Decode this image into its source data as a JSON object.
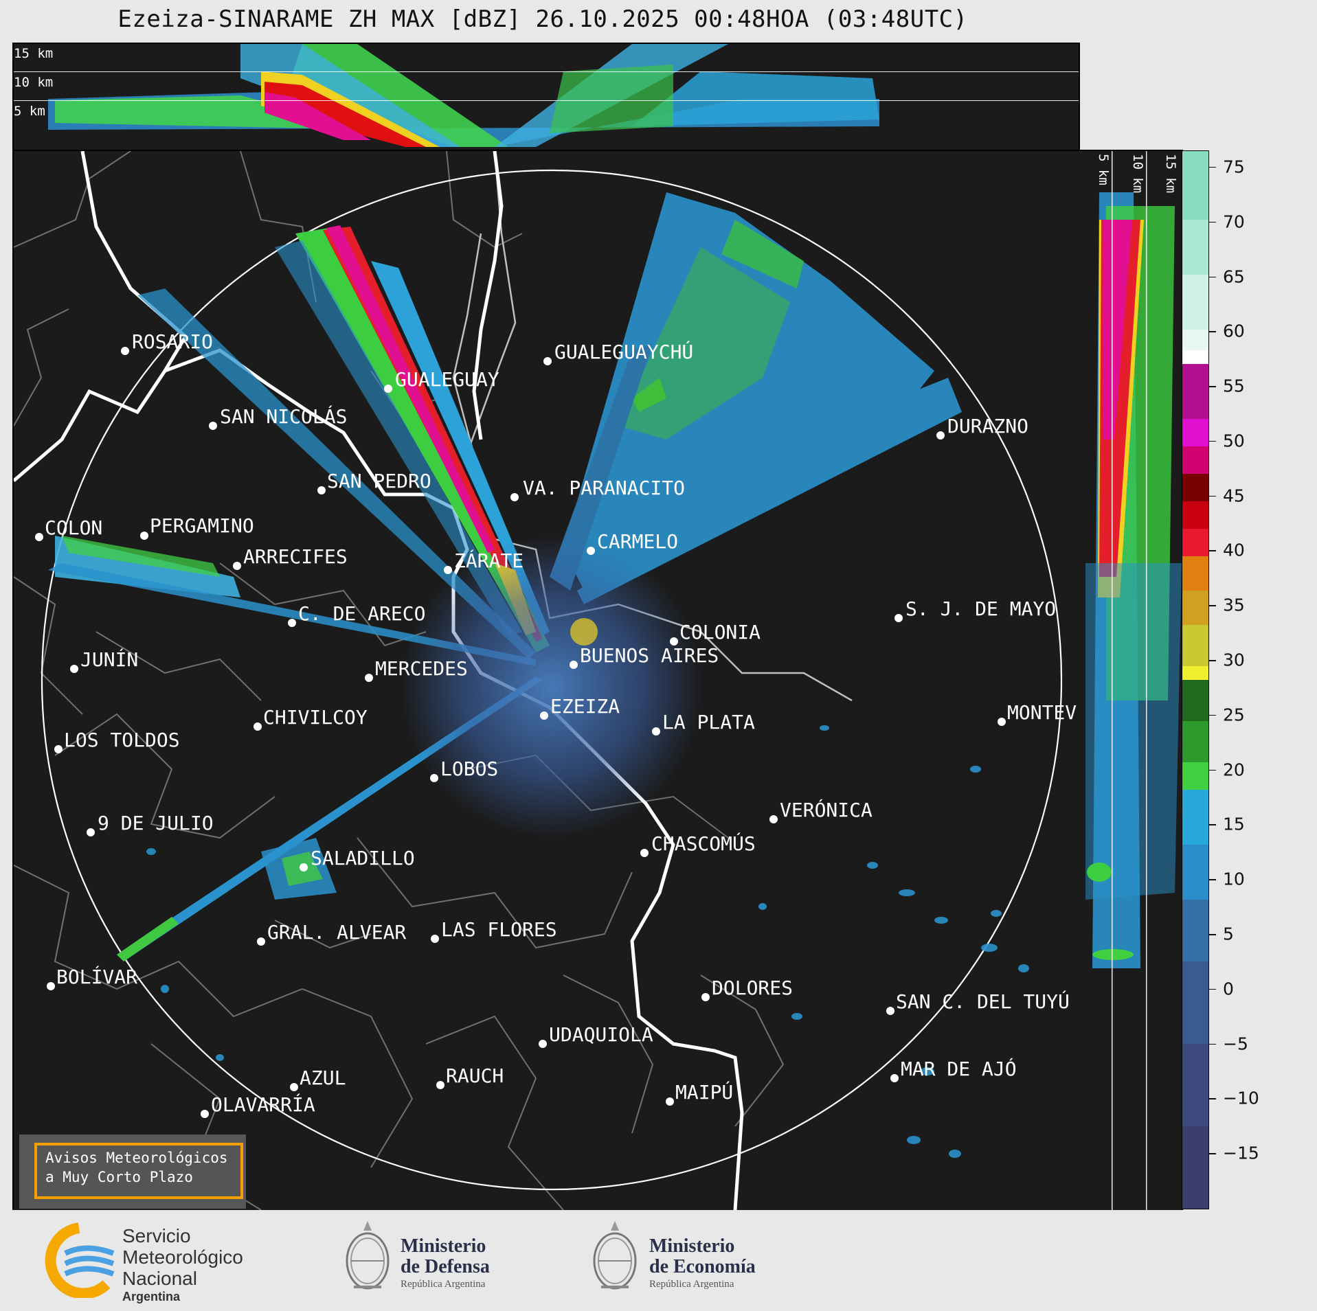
{
  "title": "Ezeiza-SINARAME ZH MAX [dBZ] 26.10.2025 00:48HOA (03:48UTC)",
  "top_panel": {
    "height_labels": [
      "15 km",
      "10 km",
      "5 km"
    ]
  },
  "side_panel": {
    "height_labels": [
      "5 km",
      "10 km",
      "15 km"
    ]
  },
  "colorbar": {
    "ticks": [
      "75",
      "70",
      "65",
      "60",
      "55",
      "50",
      "45",
      "40",
      "35",
      "30",
      "25",
      "20",
      "15",
      "10",
      "5",
      "0",
      "−5",
      "−10",
      "−15"
    ],
    "range": [
      -20,
      76.5
    ]
  },
  "cities": [
    {
      "name": "ROSARIO"
    },
    {
      "name": "GUALEGUAYCHÚ"
    },
    {
      "name": "GUALEGUAY"
    },
    {
      "name": "SAN NICOLÁS"
    },
    {
      "name": "DURAZNO"
    },
    {
      "name": "SAN PEDRO"
    },
    {
      "name": "VA. PARANACITO"
    },
    {
      "name": "COLON"
    },
    {
      "name": "PERGAMINO"
    },
    {
      "name": "CARMELO"
    },
    {
      "name": "ARRECIFES"
    },
    {
      "name": "ZÁRATE"
    },
    {
      "name": "S. J. DE MAYO"
    },
    {
      "name": "C. DE ARECO"
    },
    {
      "name": "COLONIA"
    },
    {
      "name": "JUNÍN"
    },
    {
      "name": "BUENOS AIRES"
    },
    {
      "name": "MERCEDES"
    },
    {
      "name": "MONTEV"
    },
    {
      "name": "EZEIZA"
    },
    {
      "name": "CHIVILCOY"
    },
    {
      "name": "LA PLATA"
    },
    {
      "name": "LOS TOLDOS"
    },
    {
      "name": "LOBOS"
    },
    {
      "name": "VERÓNICA"
    },
    {
      "name": "9 DE JULIO"
    },
    {
      "name": "CHASCOMÚS"
    },
    {
      "name": "SALADILLO"
    },
    {
      "name": "GRAL. ALVEAR"
    },
    {
      "name": "LAS FLORES"
    },
    {
      "name": "BOLÍVAR"
    },
    {
      "name": "DOLORES"
    },
    {
      "name": "SAN C. DEL TUYÚ"
    },
    {
      "name": "UDAQUIOLA"
    },
    {
      "name": "MAR DE AJÓ"
    },
    {
      "name": "AZUL"
    },
    {
      "name": "RAUCH"
    },
    {
      "name": "OLAVARRÍA"
    },
    {
      "name": "MAIPÚ"
    }
  ],
  "legend": {
    "line1": "Avisos Meteorológicos",
    "line2": "a Muy Corto Plazo"
  },
  "footer": {
    "smn": {
      "line1": "Servicio",
      "line2": "Meteorológico",
      "line3": "Nacional",
      "line4": "Argentina"
    },
    "defensa": {
      "title1": "Ministerio",
      "title2": "de Defensa",
      "sub": "República Argentina"
    },
    "economia": {
      "title1": "Ministerio",
      "title2": "de Economía",
      "sub": "República Argentina"
    }
  },
  "colors": {
    "background": "#e8e8e8",
    "map_bg": "#1b1b1b",
    "legend_border": "#f5a000",
    "coast": "#ffffff"
  }
}
